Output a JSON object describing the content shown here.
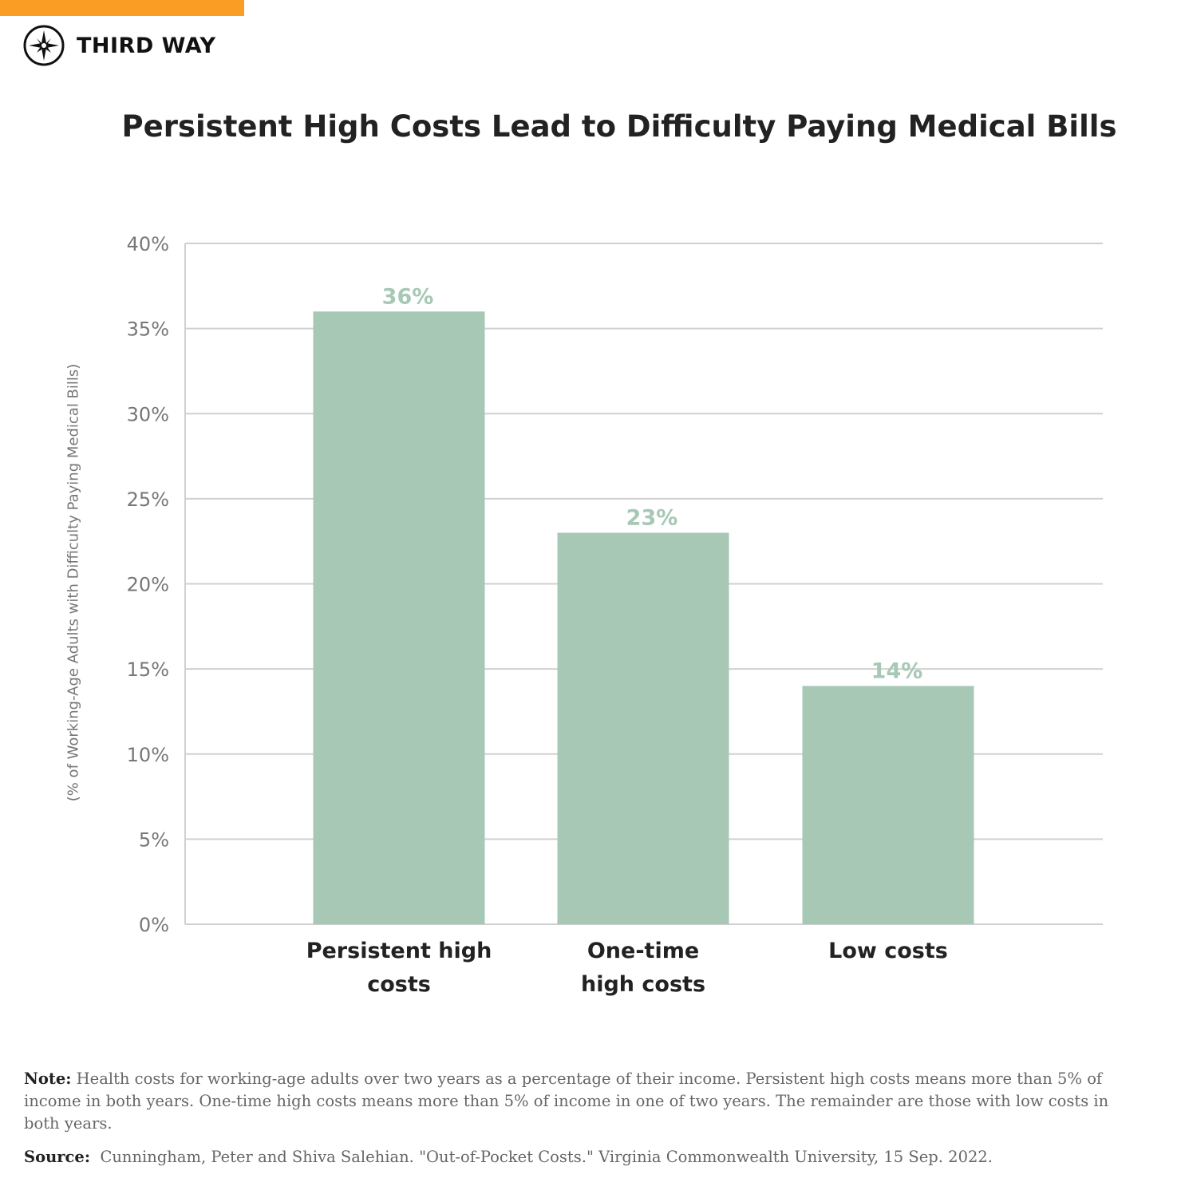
{
  "brand": {
    "name": "THIRD WAY",
    "accent_color": "#f99d25",
    "icon": "compass-icon"
  },
  "chart_data": {
    "type": "bar",
    "title": "Persistent High Costs Lead to Difficulty Paying Medical Bills",
    "xlabel": "",
    "ylabel": "(% of Working-Age Adults with Difficulty Paying Medical Bills)",
    "categories": [
      "Persistent high costs",
      "One-time high costs",
      "Low costs"
    ],
    "category_lines": [
      [
        "Persistent high",
        "costs"
      ],
      [
        "One-time",
        "high costs"
      ],
      [
        "Low costs"
      ]
    ],
    "values": [
      36,
      23,
      14
    ],
    "data_labels": [
      "36%",
      "23%",
      "14%"
    ],
    "ylim": [
      0,
      40
    ],
    "yticks": [
      0,
      5,
      10,
      15,
      20,
      25,
      30,
      35,
      40
    ],
    "ytick_labels": [
      "0%",
      "5%",
      "10%",
      "15%",
      "20%",
      "25%",
      "30%",
      "35%",
      "40%"
    ],
    "grid": true,
    "bar_color": "#a6c8b5"
  },
  "footer": {
    "note_label": "Note:",
    "note_text": "Health costs for working-age adults over two years as a percentage of their income. Persistent high costs means more than 5% of income in both years. One-time high costs means more than 5% of income in one of two years. The remainder are those with low costs in both years.",
    "source_label": "Source:",
    "source_text": "Cunningham, Peter and Shiva Salehian. \"Out-of-Pocket Costs.\" Virginia Commonwealth University, 15 Sep. 2022."
  }
}
